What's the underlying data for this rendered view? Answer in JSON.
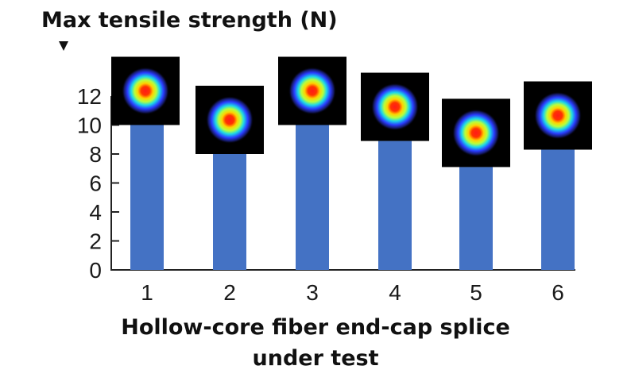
{
  "chart_data": {
    "type": "bar",
    "ylabel": "Max tensile strength (N)",
    "xlabel_lines": [
      "Hollow-core fiber end-cap splice",
      "under test"
    ],
    "categories": [
      "1",
      "2",
      "3",
      "4",
      "5",
      "6"
    ],
    "values": [
      10,
      8,
      10,
      8.9,
      7.1,
      8.3
    ],
    "ylim": [
      0,
      12
    ],
    "yticks": [
      "0",
      "2",
      "4",
      "6",
      "8",
      "10",
      "12"
    ],
    "grid": false,
    "bar_color": "#4472c4",
    "inset_images": "beam-profile-icon"
  }
}
